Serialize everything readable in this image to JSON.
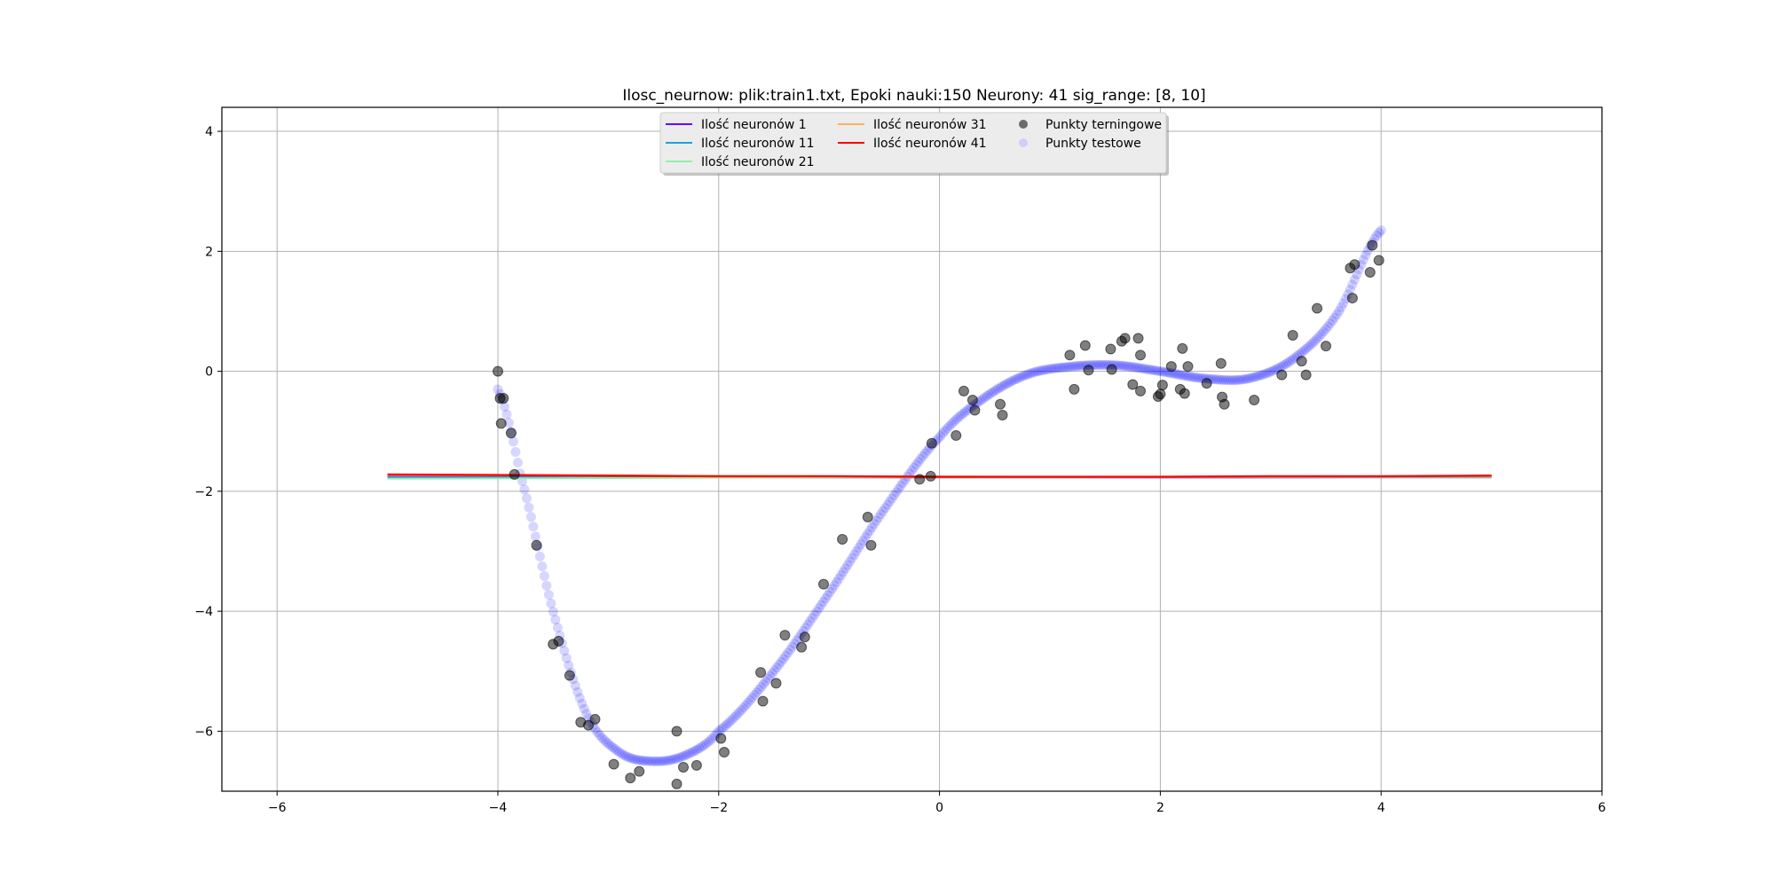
{
  "chart_data": {
    "type": "scatter",
    "title": "Ilosc_neurnow: plik:train1.txt, Epoki nauki:150 Neurony: 41 sig_range: [8, 10]",
    "xlabel": "",
    "ylabel": "",
    "xlim": [
      -6.5,
      6
    ],
    "ylim": [
      -7,
      4.4
    ],
    "xticks": [
      -6,
      -4,
      -2,
      0,
      2,
      4,
      6
    ],
    "yticks": [
      -6,
      -4,
      -2,
      0,
      2,
      4
    ],
    "xtick_labels": [
      "−6",
      "−4",
      "−2",
      "0",
      "2",
      "4",
      "6"
    ],
    "ytick_labels": [
      "−6",
      "−4",
      "−2",
      "0",
      "2",
      "4"
    ],
    "grid": true,
    "legend_position": "top-center",
    "legend": [
      {
        "label": "Ilość neuronów 1",
        "kind": "line",
        "color": "#6a00ff"
      },
      {
        "label": "Ilość neuronów 11",
        "kind": "line",
        "color": "#1ea0e0"
      },
      {
        "label": "Ilość neuronów 21",
        "kind": "line",
        "color": "#90f0a8"
      },
      {
        "label": "Ilość neuronów 31",
        "kind": "line",
        "color": "#ffb060"
      },
      {
        "label": "Ilość neuronów 41",
        "kind": "line",
        "color": "#ff0000"
      },
      {
        "label": "Punkty terningowe",
        "kind": "marker",
        "color": "#555555"
      },
      {
        "label": "Punkty testowe",
        "kind": "marker",
        "color": "#c8c8ff"
      }
    ],
    "series": [
      {
        "name": "Ilość neuronów 1",
        "kind": "line",
        "color": "#6a00ff",
        "x": [
          -5,
          -3,
          -1,
          1,
          3,
          5
        ],
        "y": [
          -1.76,
          -1.77,
          -1.77,
          -1.77,
          -1.77,
          -1.76
        ]
      },
      {
        "name": "Ilość neuronów 11",
        "kind": "line",
        "color": "#1ea0e0",
        "x": [
          -5,
          -3,
          -1,
          1,
          3,
          5
        ],
        "y": [
          -1.77,
          -1.77,
          -1.77,
          -1.77,
          -1.77,
          -1.77
        ]
      },
      {
        "name": "Ilość neuronów 21",
        "kind": "line",
        "color": "#90f0a8",
        "x": [
          -5,
          -3,
          -1,
          1,
          3,
          5
        ],
        "y": [
          -1.79,
          -1.78,
          -1.77,
          -1.77,
          -1.76,
          -1.76
        ]
      },
      {
        "name": "Ilość neuronów 31",
        "kind": "line",
        "color": "#ffb060",
        "x": [
          -5,
          -3,
          -1,
          1,
          3,
          5
        ],
        "y": [
          -1.73,
          -1.74,
          -1.75,
          -1.76,
          -1.76,
          -1.75
        ]
      },
      {
        "name": "Ilość neuronów 41",
        "kind": "line",
        "color": "#ff0000",
        "x": [
          -5,
          -4,
          -3,
          -2,
          -1,
          0,
          1,
          2,
          3,
          4,
          5
        ],
        "y": [
          -1.72,
          -1.73,
          -1.74,
          -1.75,
          -1.75,
          -1.76,
          -1.76,
          -1.76,
          -1.75,
          -1.75,
          -1.74
        ]
      },
      {
        "name": "Punkty terningowe",
        "kind": "scatter",
        "color": "#555555",
        "points": [
          [
            -4.0,
            0.0
          ],
          [
            -3.98,
            -0.45
          ],
          [
            -3.95,
            -0.45
          ],
          [
            -3.97,
            -0.87
          ],
          [
            -3.88,
            -1.03
          ],
          [
            -3.85,
            -1.72
          ],
          [
            -3.65,
            -2.9
          ],
          [
            -3.5,
            -4.55
          ],
          [
            -3.45,
            -4.5
          ],
          [
            -3.35,
            -5.07
          ],
          [
            -3.25,
            -5.85
          ],
          [
            -3.18,
            -5.9
          ],
          [
            -3.12,
            -5.8
          ],
          [
            -2.95,
            -6.55
          ],
          [
            -2.8,
            -6.78
          ],
          [
            -2.72,
            -6.67
          ],
          [
            -2.38,
            -6.0
          ],
          [
            -2.38,
            -6.88
          ],
          [
            -2.32,
            -6.6
          ],
          [
            -2.2,
            -6.57
          ],
          [
            -1.98,
            -6.12
          ],
          [
            -1.95,
            -6.35
          ],
          [
            -1.62,
            -5.02
          ],
          [
            -1.6,
            -5.5
          ],
          [
            -1.48,
            -5.2
          ],
          [
            -1.4,
            -4.4
          ],
          [
            -1.25,
            -4.6
          ],
          [
            -1.22,
            -4.43
          ],
          [
            -1.05,
            -3.55
          ],
          [
            -0.88,
            -2.8
          ],
          [
            -0.65,
            -2.43
          ],
          [
            -0.62,
            -2.9
          ],
          [
            -0.18,
            -1.8
          ],
          [
            -0.08,
            -1.75
          ],
          [
            -0.07,
            -1.2
          ],
          [
            0.15,
            -1.07
          ],
          [
            0.22,
            -0.33
          ],
          [
            0.3,
            -0.48
          ],
          [
            0.32,
            -0.65
          ],
          [
            0.55,
            -0.55
          ],
          [
            0.57,
            -0.73
          ],
          [
            1.18,
            0.27
          ],
          [
            1.22,
            -0.3
          ],
          [
            1.32,
            0.43
          ],
          [
            1.35,
            0.02
          ],
          [
            1.55,
            0.37
          ],
          [
            1.56,
            0.03
          ],
          [
            1.65,
            0.5
          ],
          [
            1.68,
            0.55
          ],
          [
            1.75,
            -0.22
          ],
          [
            1.8,
            0.55
          ],
          [
            1.82,
            0.27
          ],
          [
            1.82,
            -0.33
          ],
          [
            1.98,
            -0.42
          ],
          [
            2.0,
            -0.38
          ],
          [
            2.02,
            -0.23
          ],
          [
            2.1,
            0.08
          ],
          [
            2.18,
            -0.3
          ],
          [
            2.2,
            0.38
          ],
          [
            2.22,
            -0.37
          ],
          [
            2.25,
            0.08
          ],
          [
            2.42,
            -0.2
          ],
          [
            2.55,
            0.13
          ],
          [
            2.56,
            -0.43
          ],
          [
            2.58,
            -0.55
          ],
          [
            2.85,
            -0.48
          ],
          [
            3.1,
            -0.06
          ],
          [
            3.2,
            0.6
          ],
          [
            3.28,
            0.17
          ],
          [
            3.32,
            -0.06
          ],
          [
            3.42,
            1.05
          ],
          [
            3.5,
            0.42
          ],
          [
            3.72,
            1.72
          ],
          [
            3.74,
            1.22
          ],
          [
            3.76,
            1.78
          ],
          [
            3.9,
            1.65
          ],
          [
            3.92,
            2.1
          ],
          [
            3.98,
            1.85
          ]
        ]
      },
      {
        "name": "Punkty testowe",
        "kind": "scatter",
        "color": "#0000ff",
        "function": "0.13x^3 + 0.08x^2 - 0.93x^4/… (sampled curve, x from -4 to 4)",
        "x_range": [
          -4,
          4
        ]
      }
    ]
  }
}
